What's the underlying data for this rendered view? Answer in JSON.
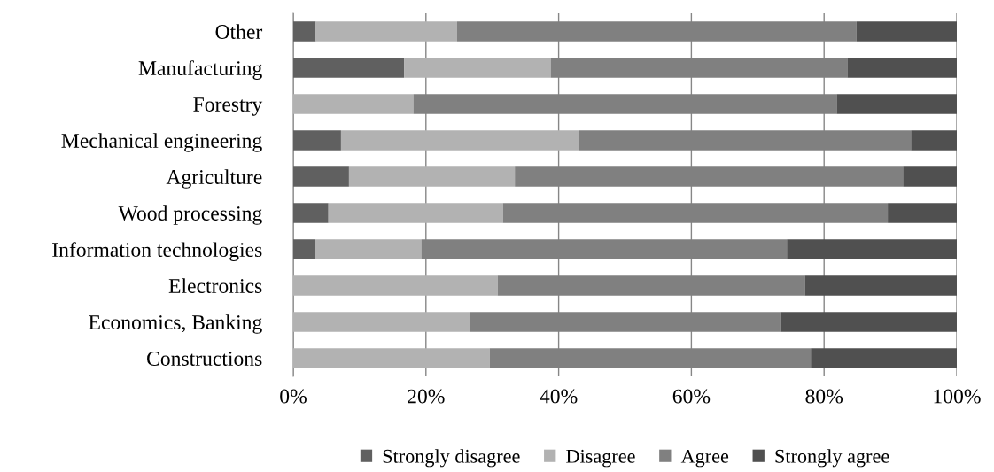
{
  "chart_data": {
    "type": "bar",
    "orientation": "horizontal",
    "stacked": true,
    "categories": [
      "Other",
      "Manufacturing",
      "Forestry",
      "Mechanical engineering",
      "Agriculture",
      "Wood processing",
      "Information technologies",
      "Electronics",
      "Economics, Banking",
      "Constructions"
    ],
    "series": [
      {
        "name": "Strongly disagree",
        "color": "#606060",
        "values": [
          3.4,
          16.7,
          0,
          7.2,
          8.4,
          5.3,
          3.3,
          0,
          0,
          0
        ]
      },
      {
        "name": "Disagree",
        "color": "#b2b2b2",
        "values": [
          21.3,
          22.1,
          18.1,
          35.8,
          25.0,
          26.3,
          16.0,
          30.8,
          26.7,
          29.6
        ]
      },
      {
        "name": "Agree",
        "color": "#808080",
        "values": [
          60.2,
          44.7,
          63.8,
          50.1,
          58.5,
          58.0,
          55.1,
          46.3,
          46.8,
          48.4
        ]
      },
      {
        "name": "Strongly agree",
        "color": "#505050",
        "values": [
          15.1,
          16.5,
          18.1,
          6.9,
          8.1,
          10.4,
          25.6,
          22.9,
          26.5,
          22.0
        ]
      }
    ],
    "xlim": [
      0,
      100
    ],
    "xticks": [
      {
        "value": 0,
        "label": "0%"
      },
      {
        "value": 20,
        "label": "20%"
      },
      {
        "value": 40,
        "label": "40%"
      },
      {
        "value": 60,
        "label": "60%"
      },
      {
        "value": 80,
        "label": "80%"
      },
      {
        "value": 100,
        "label": "100%"
      }
    ],
    "grid": "x",
    "legend": "bottom"
  }
}
